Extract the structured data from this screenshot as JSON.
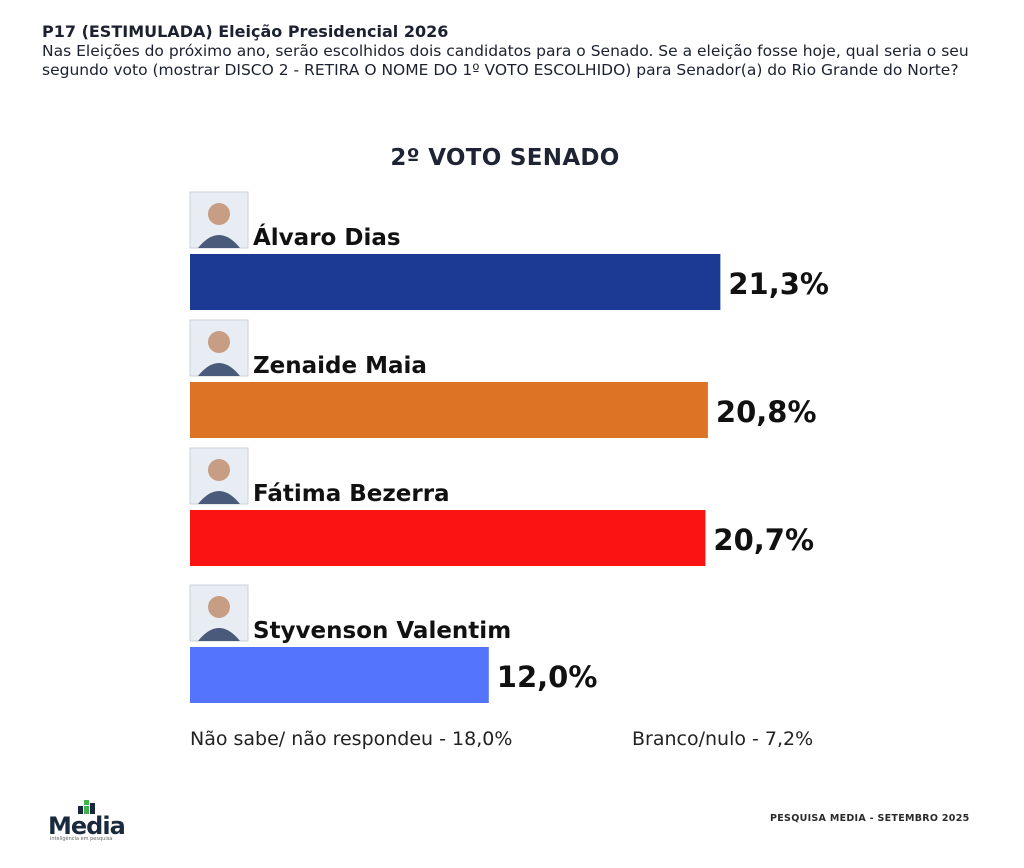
{
  "header": {
    "question_title": "P17 (ESTIMULADA) Eleição Presidencial 2026",
    "question_text": "Nas Eleições do próximo ano, serão escolhidos dois candidatos para o Senado. Se a eleição fosse hoje, qual seria o seu segundo voto (mostrar DISCO 2 - RETIRA O NOME DO 1º VOTO ESCOLHIDO) para Senador(a) do Rio Grande do Norte?"
  },
  "chart_data": {
    "type": "bar",
    "orientation": "horizontal",
    "title": "2º VOTO SENADO",
    "categories": [
      "Álvaro Dias",
      "Zenaide Maia",
      "Fátima Bezerra",
      "Styvenson Valentim"
    ],
    "values": [
      21.3,
      20.8,
      20.7,
      12.0
    ],
    "value_labels": [
      "21,3%",
      "20,8%",
      "20,7%",
      "12,0%"
    ],
    "colors": [
      "#1a3a93",
      "#dd7325",
      "#fa1312",
      "#5474fe"
    ],
    "xlim": [
      0,
      24
    ],
    "grid": false,
    "legend": "none",
    "icons": [
      "candidate-photo-alvaro-dias-icon",
      "candidate-photo-zenaide-maia-icon",
      "candidate-photo-fatima-bezerra-icon",
      "candidate-photo-styvenson-valentim-icon"
    ]
  },
  "footer": {
    "nao_sabe": "Não sabe/ não respondeu - 18,0%",
    "branco_nulo": "Branco/nulo - 7,2%",
    "source": "PESQUISA MEDIA - SETEMBRO 2025",
    "logo_text": "Media",
    "logo_tagline": "inteligência em pesquisa"
  }
}
